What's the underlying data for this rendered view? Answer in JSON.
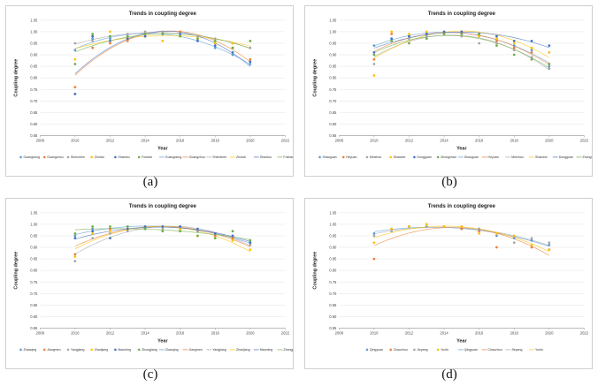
{
  "captions": [
    "(a)",
    "(b)",
    "(c)",
    "(d)"
  ],
  "chart_data": [
    {
      "type": "scatter",
      "title": "Trends in coupling degree",
      "xlabel": "Year",
      "ylabel": "Coupling degree",
      "xlim": [
        2008,
        2022
      ],
      "ylim": [
        0.55,
        1.05
      ],
      "xticks": [
        2008,
        2010,
        2012,
        2014,
        2016,
        2018,
        2020,
        2022
      ],
      "yticks": [
        0.55,
        0.6,
        0.65,
        0.7,
        0.75,
        0.8,
        0.85,
        0.9,
        0.95,
        1.0,
        1.05
      ],
      "x": [
        2010,
        2011,
        2012,
        2013,
        2014,
        2015,
        2016,
        2017,
        2018,
        2019,
        2020
      ],
      "trendline": true,
      "legend_position": "bottom",
      "series": [
        {
          "name": "Guangdong",
          "color": "#5b9bd5",
          "values": [
            0.92,
            0.97,
            0.97,
            0.98,
            0.99,
            0.99,
            0.99,
            0.96,
            0.93,
            0.9,
            0.86
          ]
        },
        {
          "name": "Guangzhou",
          "color": "#ed7d31",
          "values": [
            0.76,
            0.93,
            0.95,
            0.96,
            0.98,
            1.0,
            1.0,
            0.97,
            0.95,
            0.93,
            0.88
          ]
        },
        {
          "name": "Shenzhen",
          "color": "#a5a5a5",
          "values": [
            0.95,
            0.96,
            0.98,
            0.99,
            1.0,
            1.0,
            0.99,
            0.98,
            0.97,
            0.95,
            0.93
          ]
        },
        {
          "name": "Zhuhai",
          "color": "#ffc000",
          "values": [
            0.88,
            0.98,
            1.0,
            0.97,
            0.99,
            0.96,
            0.98,
            0.97,
            0.95,
            0.95,
            0.96
          ]
        },
        {
          "name": "Shantou",
          "color": "#4472c4",
          "values": [
            0.73,
            0.98,
            0.96,
            0.97,
            0.98,
            0.99,
            0.99,
            0.96,
            0.94,
            0.91,
            0.87
          ]
        },
        {
          "name": "Foshan",
          "color": "#70ad47",
          "values": [
            0.86,
            0.99,
            0.98,
            0.98,
            0.99,
            0.99,
            0.98,
            0.97,
            0.96,
            0.93,
            0.96
          ]
        }
      ]
    },
    {
      "type": "scatter",
      "title": "Trends in coupling degree",
      "xlabel": "Year",
      "ylabel": "Coupling degree",
      "xlim": [
        2008,
        2022
      ],
      "ylim": [
        0.55,
        1.05
      ],
      "xticks": [
        2008,
        2010,
        2012,
        2014,
        2016,
        2018,
        2020,
        2022
      ],
      "yticks": [
        0.55,
        0.6,
        0.65,
        0.7,
        0.75,
        0.8,
        0.85,
        0.9,
        0.95,
        1.0,
        1.05
      ],
      "x": [
        2010,
        2011,
        2012,
        2013,
        2014,
        2015,
        2016,
        2017,
        2018,
        2019,
        2020
      ],
      "trendline": true,
      "legend_position": "bottom",
      "series": [
        {
          "name": "Shaoguan",
          "color": "#5b9bd5",
          "values": [
            0.94,
            0.97,
            0.98,
            0.99,
            0.99,
            0.99,
            0.99,
            0.97,
            0.94,
            0.92,
            0.85
          ]
        },
        {
          "name": "Heyuan",
          "color": "#ed7d31",
          "values": [
            0.88,
            0.99,
            0.98,
            0.99,
            0.99,
            0.99,
            0.98,
            0.96,
            0.93,
            0.91,
            0.86
          ]
        },
        {
          "name": "Meizhou",
          "color": "#a5a5a5",
          "values": [
            0.86,
            0.96,
            0.97,
            0.98,
            0.99,
            0.98,
            0.95,
            0.95,
            0.92,
            0.89,
            0.84
          ]
        },
        {
          "name": "Shanwei",
          "color": "#ffc000",
          "values": [
            0.81,
            1.0,
            0.99,
            1.0,
            0.99,
            0.99,
            0.98,
            0.97,
            0.95,
            0.93,
            0.91
          ]
        },
        {
          "name": "Dongguan",
          "color": "#4472c4",
          "values": [
            0.91,
            0.97,
            0.98,
            0.99,
            1.0,
            1.0,
            0.99,
            0.98,
            0.96,
            0.96,
            0.94
          ]
        },
        {
          "name": "Zhongshan",
          "color": "#70ad47",
          "values": [
            0.9,
            0.96,
            0.95,
            0.97,
            0.99,
            0.99,
            0.99,
            0.94,
            0.9,
            0.88,
            0.86
          ]
        }
      ]
    },
    {
      "type": "scatter",
      "title": "Trends in coupling degree",
      "xlabel": "Year",
      "ylabel": "Coupling degree",
      "xlim": [
        2008,
        2022
      ],
      "ylim": [
        0.55,
        1.05
      ],
      "xticks": [
        2008,
        2010,
        2012,
        2014,
        2016,
        2018,
        2020,
        2022
      ],
      "yticks": [
        0.55,
        0.6,
        0.65,
        0.7,
        0.75,
        0.8,
        0.85,
        0.9,
        0.95,
        1.0,
        1.05
      ],
      "x": [
        2010,
        2011,
        2012,
        2013,
        2014,
        2015,
        2016,
        2017,
        2018,
        2019,
        2020
      ],
      "trendline": true,
      "legend_position": "bottom",
      "series": [
        {
          "name": "Zhaoqing",
          "color": "#5b9bd5",
          "values": [
            0.95,
            0.98,
            0.98,
            0.99,
            0.99,
            0.99,
            0.99,
            0.97,
            0.96,
            0.94,
            0.92
          ]
        },
        {
          "name": "Jiangmen",
          "color": "#ed7d31",
          "values": [
            0.87,
            0.97,
            0.98,
            0.98,
            0.98,
            0.99,
            0.98,
            0.97,
            0.95,
            0.94,
            0.91
          ]
        },
        {
          "name": "Yangjiang",
          "color": "#a5a5a5",
          "values": [
            0.84,
            0.94,
            0.96,
            0.97,
            0.98,
            0.98,
            0.99,
            0.97,
            0.96,
            0.95,
            0.91
          ]
        },
        {
          "name": "Zhanjiang",
          "color": "#ffc000",
          "values": [
            0.86,
            0.96,
            0.97,
            0.98,
            0.99,
            0.99,
            0.98,
            0.95,
            0.94,
            0.93,
            0.89
          ]
        },
        {
          "name": "Maoming",
          "color": "#4472c4",
          "values": [
            0.94,
            0.97,
            0.94,
            0.98,
            0.99,
            0.99,
            0.99,
            0.98,
            0.96,
            0.95,
            0.92
          ]
        },
        {
          "name": "Zhongjiang",
          "color": "#70ad47",
          "values": [
            0.96,
            0.99,
            0.99,
            0.99,
            0.98,
            0.97,
            0.97,
            0.95,
            0.94,
            0.97,
            0.93
          ]
        }
      ]
    },
    {
      "type": "scatter",
      "title": "Trends in coupling degree",
      "xlabel": "Year",
      "ylabel": "Coupling degree",
      "xlim": [
        2008,
        2022
      ],
      "ylim": [
        0.55,
        1.05
      ],
      "xticks": [
        2008,
        2010,
        2012,
        2014,
        2016,
        2018,
        2020,
        2022
      ],
      "yticks": [
        0.55,
        0.6,
        0.65,
        0.7,
        0.75,
        0.8,
        0.85,
        0.9,
        0.95,
        1.0,
        1.05
      ],
      "x": [
        2010,
        2011,
        2012,
        2013,
        2014,
        2015,
        2016,
        2017,
        2018,
        2019,
        2020
      ],
      "trendline": true,
      "legend_position": "bottom",
      "series": [
        {
          "name": "Qingyuan",
          "color": "#5b9bd5",
          "values": [
            0.96,
            0.98,
            0.99,
            0.99,
            0.99,
            0.98,
            0.98,
            0.95,
            0.94,
            0.93,
            0.91
          ]
        },
        {
          "name": "Chaozhou",
          "color": "#ed7d31",
          "values": [
            0.85,
            0.98,
            0.99,
            1.0,
            0.99,
            0.98,
            0.97,
            0.9,
            0.95,
            0.9,
            0.89
          ]
        },
        {
          "name": "Jieyang",
          "color": "#a5a5a5",
          "values": [
            0.95,
            0.97,
            0.99,
            0.99,
            0.99,
            0.99,
            0.98,
            0.96,
            0.92,
            0.94,
            0.92
          ]
        },
        {
          "name": "Yunfu",
          "color": "#ffc000",
          "values": [
            0.92,
            0.98,
            0.99,
            1.0,
            0.99,
            0.99,
            0.96,
            0.96,
            0.95,
            0.91,
            0.89
          ]
        }
      ]
    }
  ]
}
